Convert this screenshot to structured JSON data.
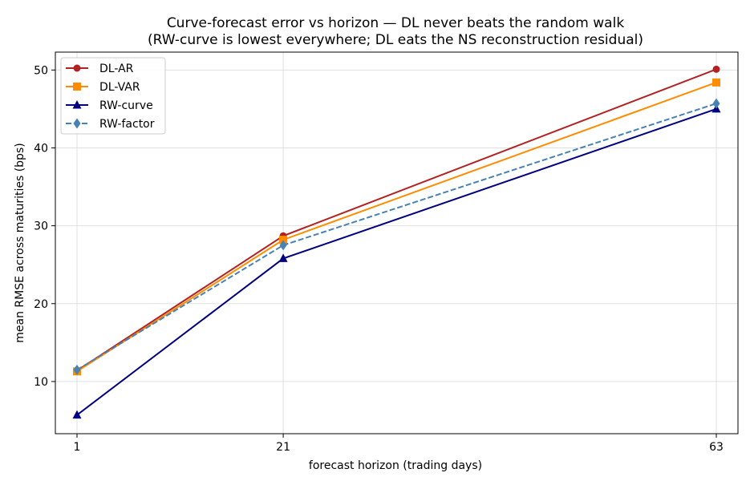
{
  "chart_data": {
    "type": "line",
    "title": "Curve-forecast error vs horizon — DL never beats the random walk",
    "subtitle": "(RW-curve is lowest everywhere; DL eats the NS reconstruction residual)",
    "xlabel": "forecast horizon (trading days)",
    "ylabel": "mean RMSE across maturities (bps)",
    "x": [
      1,
      21,
      63
    ],
    "x_ticks": [
      "1",
      "21",
      "63"
    ],
    "y_ticks": [
      "10",
      "20",
      "30",
      "40",
      "50"
    ],
    "xlim": [
      -1.1,
      65.1
    ],
    "ylim": [
      3.3,
      52.3
    ],
    "grid": true,
    "legend_position": "top-left",
    "series": [
      {
        "name": "DL-AR",
        "values": [
          11.4,
          28.7,
          50.1
        ],
        "color": "#b22222",
        "marker": "circle",
        "dash": "solid"
      },
      {
        "name": "DL-VAR",
        "values": [
          11.3,
          28.2,
          48.4
        ],
        "color": "#ff8c00",
        "marker": "square",
        "dash": "solid"
      },
      {
        "name": "RW-curve",
        "values": [
          5.7,
          25.8,
          45.0
        ],
        "color": "#000080",
        "marker": "triangle",
        "dash": "solid"
      },
      {
        "name": "RW-factor",
        "values": [
          11.5,
          27.5,
          45.7
        ],
        "color": "#4682b4",
        "marker": "diamond",
        "dash": "dashed"
      }
    ]
  }
}
